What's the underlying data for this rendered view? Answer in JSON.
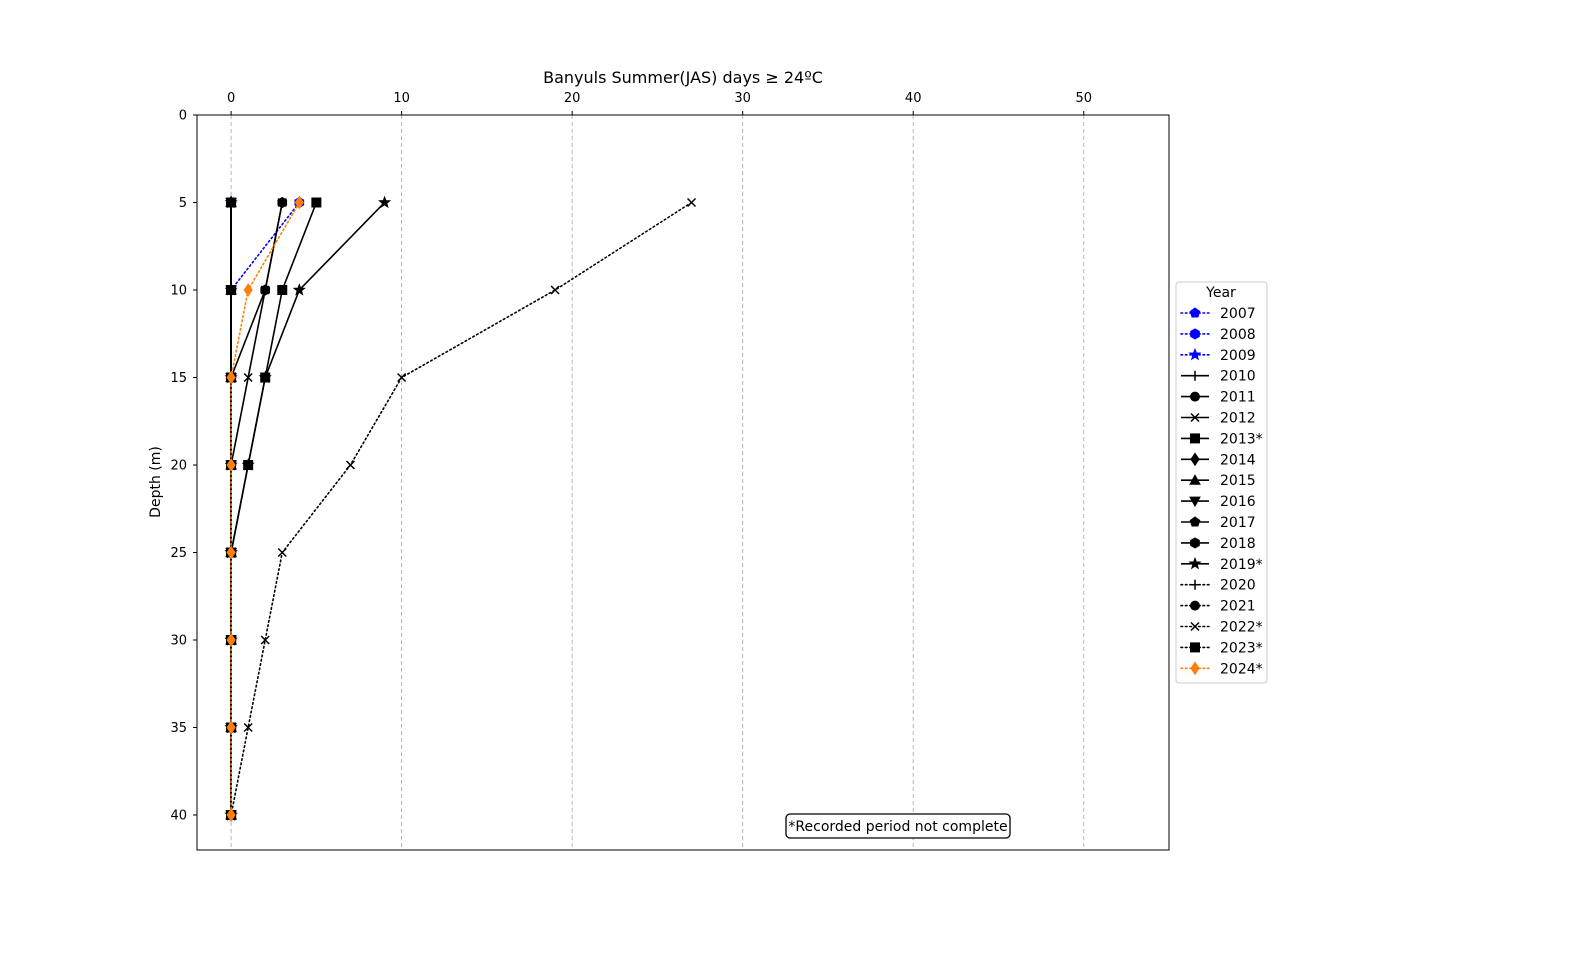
{
  "chart_data": {
    "type": "line",
    "title": "Banyuls Summer(JAS) days ≥ 24ºC",
    "xlabel": "",
    "ylabel": "Depth (m)",
    "xlim": [
      -2,
      55
    ],
    "ylim": [
      42,
      0
    ],
    "x_ticks": [
      0,
      10,
      20,
      30,
      40,
      50
    ],
    "y_ticks": [
      0,
      5,
      10,
      15,
      20,
      25,
      30,
      35,
      40
    ],
    "x_axis_position": "top",
    "y_inverted": true,
    "grid": "x-dashed",
    "legend_title": "Year",
    "legend_position": "right",
    "depths": [
      5,
      10,
      15,
      20,
      25,
      30,
      35,
      40
    ],
    "annotation": "*Recorded period not complete",
    "series": [
      {
        "name": "2007",
        "color": "#0000ff",
        "linestyle": "dotted",
        "marker": "pentagon",
        "values": [
          0,
          0,
          0,
          0,
          0,
          0,
          0,
          0
        ]
      },
      {
        "name": "2008",
        "color": "#0000ff",
        "linestyle": "dotted",
        "marker": "hexagon",
        "values": [
          4,
          0,
          0,
          0,
          0,
          0,
          0,
          0
        ]
      },
      {
        "name": "2009",
        "color": "#0000ff",
        "linestyle": "dotted",
        "marker": "star",
        "values": [
          0,
          0,
          0,
          0,
          0,
          0,
          0,
          0
        ]
      },
      {
        "name": "2010",
        "color": "#000000",
        "linestyle": "solid",
        "marker": "plus",
        "values": [
          0,
          0,
          0,
          0,
          0,
          0,
          0,
          0
        ]
      },
      {
        "name": "2011",
        "color": "#000000",
        "linestyle": "solid",
        "marker": "circle",
        "values": [
          0,
          0,
          0,
          0,
          0,
          0,
          0,
          0
        ]
      },
      {
        "name": "2012",
        "color": "#000000",
        "linestyle": "solid",
        "marker": "x",
        "values": [
          3,
          2,
          1,
          0,
          0,
          0,
          0,
          0
        ]
      },
      {
        "name": "2013*",
        "color": "#000000",
        "linestyle": "solid",
        "marker": "square",
        "values": [
          5,
          3,
          2,
          1,
          0,
          0,
          0,
          0
        ]
      },
      {
        "name": "2014",
        "color": "#000000",
        "linestyle": "solid",
        "marker": "diamond",
        "values": [
          0,
          0,
          0,
          0,
          0,
          0,
          0,
          0
        ]
      },
      {
        "name": "2015",
        "color": "#000000",
        "linestyle": "solid",
        "marker": "triangle-up",
        "values": [
          0,
          0,
          0,
          0,
          0,
          0,
          0,
          0
        ]
      },
      {
        "name": "2016",
        "color": "#000000",
        "linestyle": "solid",
        "marker": "triangle-down",
        "values": [
          0,
          0,
          0,
          0,
          0,
          0,
          0,
          0
        ]
      },
      {
        "name": "2017",
        "color": "#000000",
        "linestyle": "solid",
        "marker": "pentagon",
        "values": [
          0,
          0,
          0,
          0,
          0,
          0,
          0,
          0
        ]
      },
      {
        "name": "2018",
        "color": "#000000",
        "linestyle": "solid",
        "marker": "hexagon",
        "values": [
          3,
          2,
          0,
          0,
          0,
          0,
          0,
          0
        ]
      },
      {
        "name": "2019*",
        "color": "#000000",
        "linestyle": "solid",
        "marker": "star",
        "values": [
          9,
          4,
          2,
          1,
          0,
          0,
          0,
          0
        ]
      },
      {
        "name": "2020",
        "color": "#000000",
        "linestyle": "dotted",
        "marker": "plus",
        "values": [
          0,
          0,
          0,
          0,
          0,
          0,
          0,
          0
        ]
      },
      {
        "name": "2021",
        "color": "#000000",
        "linestyle": "dotted",
        "marker": "circle",
        "values": [
          0,
          0,
          0,
          0,
          0,
          0,
          0,
          0
        ]
      },
      {
        "name": "2022*",
        "color": "#000000",
        "linestyle": "dotted",
        "marker": "x",
        "values": [
          27,
          19,
          10,
          7,
          3,
          2,
          1,
          0
        ]
      },
      {
        "name": "2023*",
        "color": "#000000",
        "linestyle": "dotted",
        "marker": "square",
        "values": [
          0,
          0,
          0,
          0,
          0,
          0,
          0,
          0
        ]
      },
      {
        "name": "2024*",
        "color": "#ff7f0e",
        "linestyle": "dotted",
        "marker": "diamond",
        "values": [
          4,
          1,
          0,
          0,
          0,
          0,
          0,
          0
        ]
      }
    ]
  }
}
